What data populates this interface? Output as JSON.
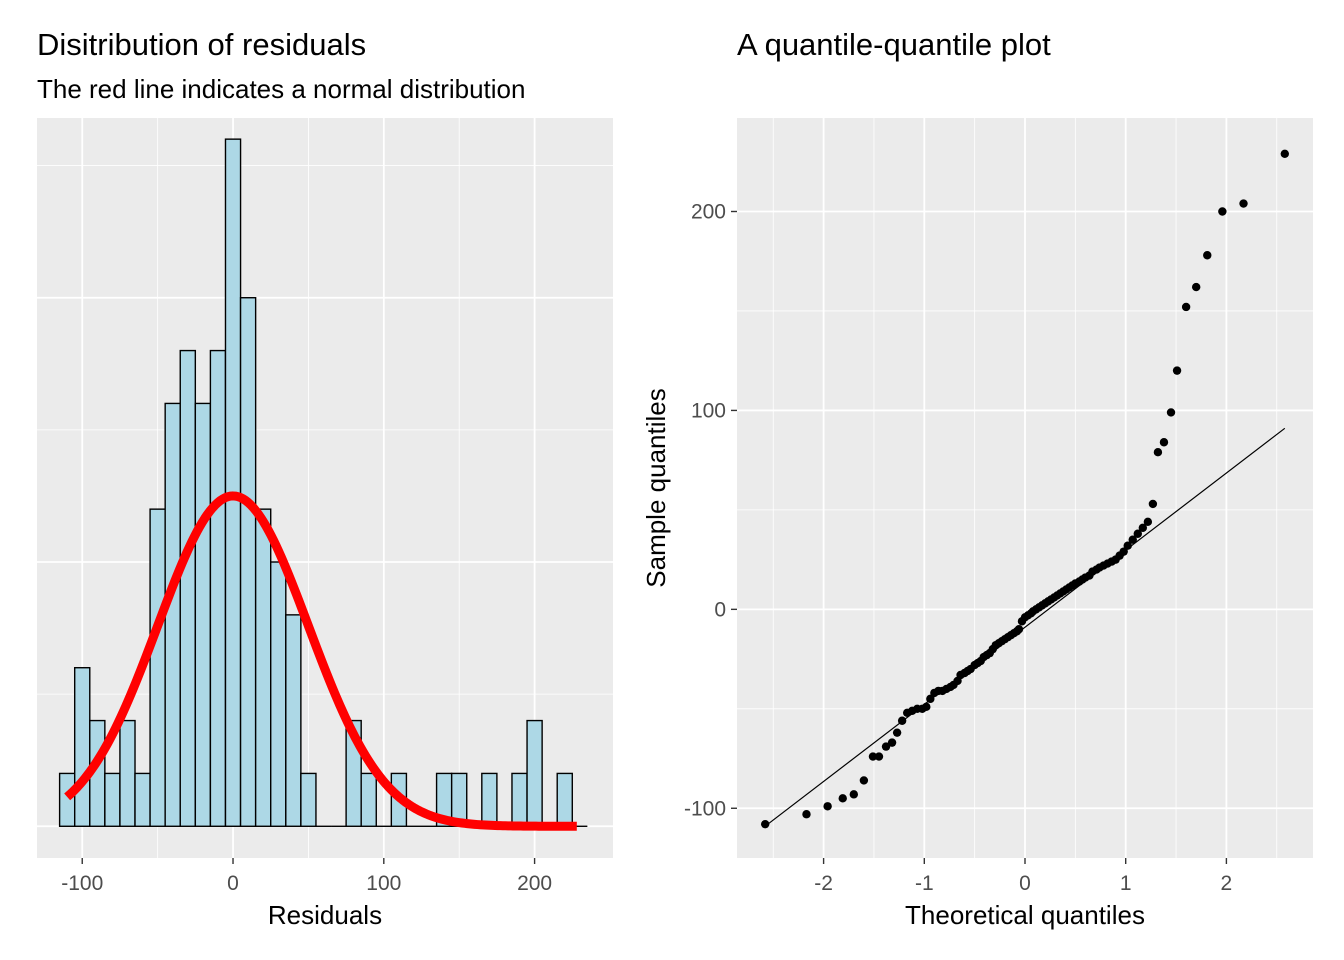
{
  "chart_data": [
    {
      "type": "bar",
      "title": "Disitribution of residuals",
      "subtitle": "The red line indicates a normal distribution",
      "xlabel": "Residuals",
      "ylabel": "",
      "xlim": [
        -130,
        252
      ],
      "ylim": [
        -0.6,
        13.4
      ],
      "x_ticks": [
        -100,
        0,
        100,
        200
      ],
      "x_tick_labels": [
        "-100",
        "0",
        "100",
        "200"
      ],
      "y_grid_major": [
        0,
        5,
        10
      ],
      "y_grid_minor": [
        2.5,
        7.5,
        12.5
      ],
      "y_tick_labels_shown": false,
      "grid": true,
      "bins": {
        "width": 10,
        "left_edges": [
          -115,
          -105,
          -95,
          -85,
          -75,
          -65,
          -55,
          -45,
          -35,
          -25,
          -15,
          -5,
          5,
          15,
          25,
          35,
          45,
          55,
          65,
          75,
          85,
          95,
          105,
          115,
          125,
          135,
          145,
          155,
          165,
          175,
          185,
          195,
          205,
          215,
          225
        ],
        "counts": [
          1,
          3,
          2,
          1,
          2,
          1,
          6,
          8,
          9,
          8,
          9,
          13,
          10,
          6,
          5,
          4,
          1,
          0,
          0,
          2,
          1,
          0,
          1,
          0,
          0,
          1,
          1,
          0,
          1,
          0,
          1,
          2,
          0,
          1,
          0
        ],
        "fill": "#add8e6",
        "outline": "#000000"
      },
      "normal_curve": {
        "description": "",
        "mean": 0,
        "peak": 6.25,
        "sd": 50,
        "x_range": [
          -110,
          228
        ],
        "color": "#ff0000"
      }
    },
    {
      "type": "scatter",
      "title": "A quantile-quantile plot",
      "xlabel": "Theoretical quantiles",
      "ylabel": "Sample quantiles",
      "xlim": [
        -2.86,
        2.86
      ],
      "ylim": [
        -125,
        247
      ],
      "x_ticks": [
        -2,
        -1,
        0,
        1,
        2
      ],
      "x_tick_labels": [
        "-2",
        "-1",
        "0",
        "1",
        "2"
      ],
      "y_ticks": [
        -100,
        0,
        100,
        200
      ],
      "y_tick_labels": [
        "-100",
        "0",
        "100",
        "200"
      ],
      "grid": true,
      "points": [
        [
          -2.58,
          -108
        ],
        [
          -2.17,
          -103
        ],
        [
          -1.96,
          -99
        ],
        [
          -1.81,
          -95
        ],
        [
          -1.7,
          -93
        ],
        [
          -1.6,
          -86
        ],
        [
          -1.51,
          -74
        ],
        [
          -1.45,
          -74
        ],
        [
          -1.38,
          -69
        ],
        [
          -1.32,
          -67
        ],
        [
          -1.27,
          -62
        ],
        [
          -1.22,
          -56
        ],
        [
          -1.17,
          -52
        ],
        [
          -1.12,
          -51
        ],
        [
          -1.07,
          -50
        ],
        [
          -1.02,
          -50
        ],
        [
          -0.98,
          -49
        ],
        [
          -0.94,
          -45
        ],
        [
          -0.9,
          -42
        ],
        [
          -0.86,
          -41
        ],
        [
          -0.82,
          -41
        ],
        [
          -0.78,
          -40
        ],
        [
          -0.74,
          -39
        ],
        [
          -0.71,
          -38
        ],
        [
          -0.67,
          -36
        ],
        [
          -0.64,
          -33
        ],
        [
          -0.6,
          -32
        ],
        [
          -0.57,
          -31
        ],
        [
          -0.54,
          -30
        ],
        [
          -0.5,
          -28
        ],
        [
          -0.47,
          -27
        ],
        [
          -0.44,
          -26
        ],
        [
          -0.41,
          -24
        ],
        [
          -0.38,
          -23
        ],
        [
          -0.35,
          -22
        ],
        [
          -0.32,
          -20
        ],
        [
          -0.29,
          -18
        ],
        [
          -0.26,
          -17
        ],
        [
          -0.23,
          -16
        ],
        [
          -0.2,
          -15
        ],
        [
          -0.17,
          -14
        ],
        [
          -0.14,
          -13
        ],
        [
          -0.11,
          -12
        ],
        [
          -0.08,
          -11
        ],
        [
          -0.06,
          -10
        ],
        [
          -0.03,
          -6
        ],
        [
          0.0,
          -4
        ],
        [
          0.03,
          -3
        ],
        [
          0.06,
          -2
        ],
        [
          0.08,
          -1
        ],
        [
          0.11,
          0
        ],
        [
          0.14,
          1
        ],
        [
          0.17,
          2
        ],
        [
          0.2,
          3
        ],
        [
          0.23,
          4
        ],
        [
          0.26,
          5
        ],
        [
          0.29,
          6
        ],
        [
          0.32,
          7
        ],
        [
          0.35,
          8
        ],
        [
          0.38,
          9
        ],
        [
          0.41,
          10
        ],
        [
          0.44,
          11
        ],
        [
          0.47,
          12
        ],
        [
          0.5,
          13
        ],
        [
          0.54,
          14
        ],
        [
          0.57,
          15
        ],
        [
          0.6,
          16
        ],
        [
          0.64,
          17
        ],
        [
          0.67,
          19
        ],
        [
          0.71,
          20
        ],
        [
          0.74,
          21
        ],
        [
          0.78,
          22
        ],
        [
          0.82,
          23
        ],
        [
          0.86,
          24
        ],
        [
          0.9,
          25
        ],
        [
          0.94,
          27
        ],
        [
          0.98,
          29
        ],
        [
          1.02,
          32
        ],
        [
          1.07,
          35
        ],
        [
          1.12,
          38
        ],
        [
          1.17,
          41
        ],
        [
          1.22,
          44
        ],
        [
          1.27,
          53
        ],
        [
          1.32,
          79
        ],
        [
          1.38,
          84
        ],
        [
          1.45,
          99
        ],
        [
          1.51,
          120
        ],
        [
          1.6,
          152
        ],
        [
          1.7,
          162
        ],
        [
          1.81,
          178
        ],
        [
          1.96,
          200
        ],
        [
          2.17,
          204
        ],
        [
          2.58,
          229
        ]
      ],
      "point_color": "#000000",
      "reference_line": {
        "x": [
          -2.58,
          2.58
        ],
        "y": [
          -109,
          91
        ],
        "color": "#000000"
      }
    }
  ]
}
